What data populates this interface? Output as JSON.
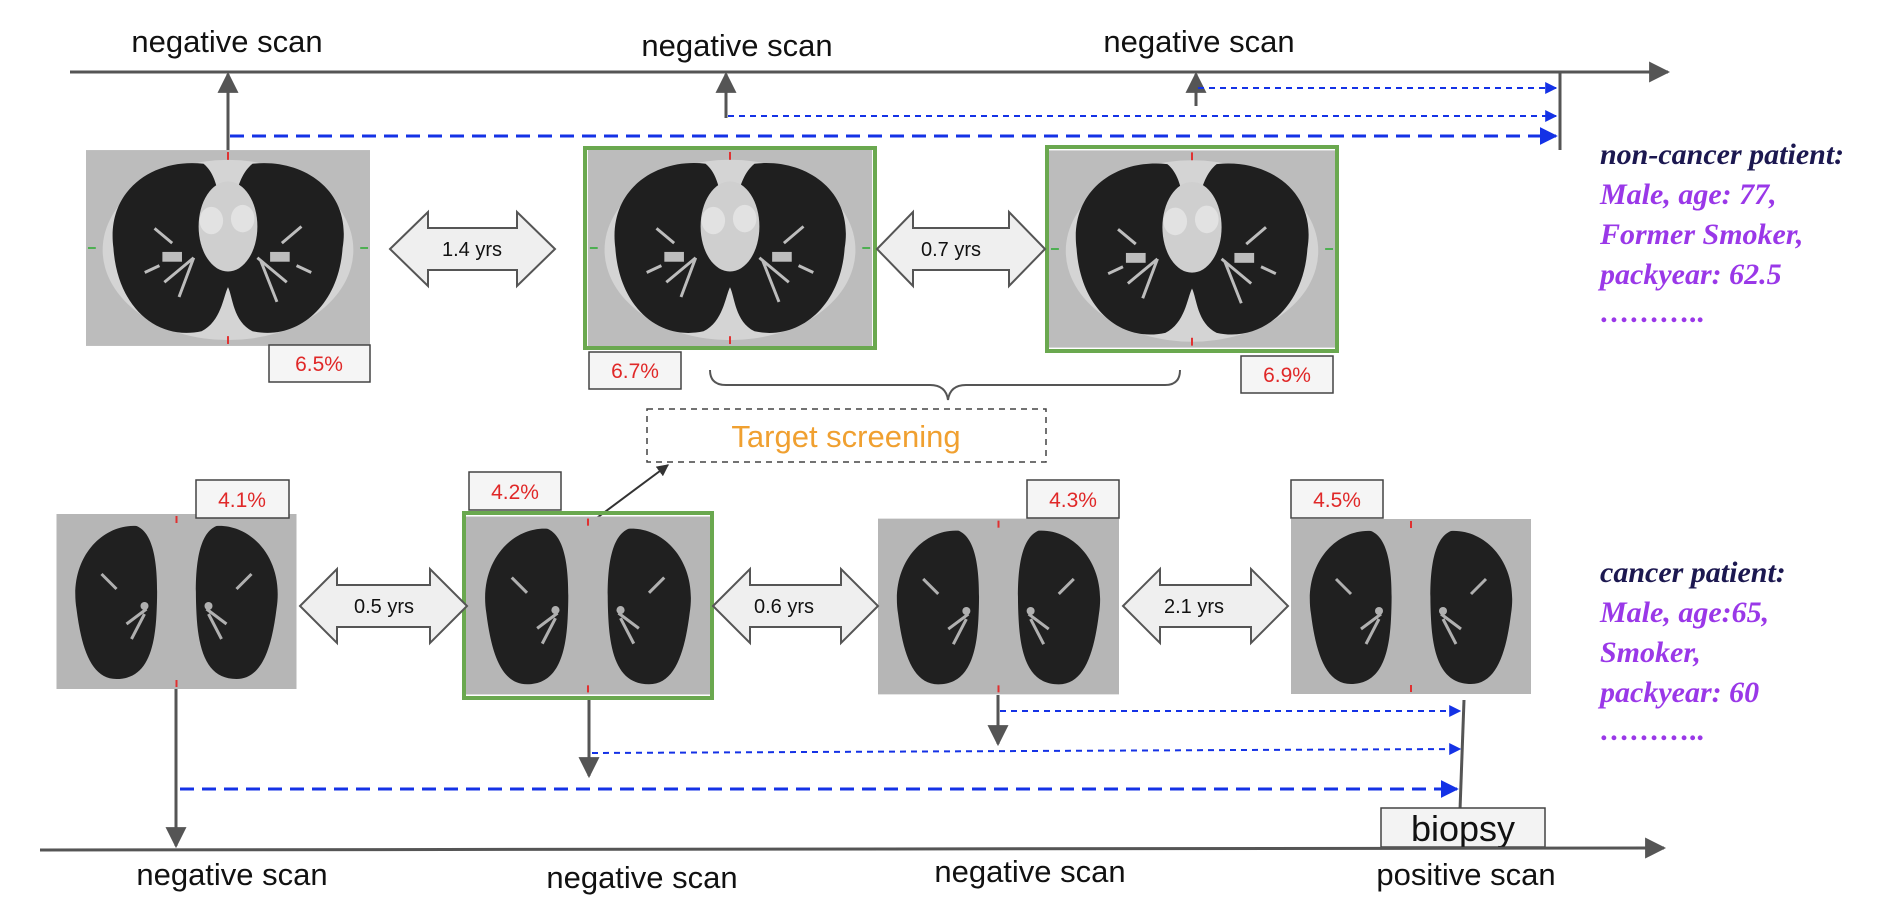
{
  "colors": {
    "axis": "#555555",
    "dashed": "#1432e6",
    "frame_highlight": "#6aa84f",
    "percent_text": "#e02828",
    "target_text": "#f0a030",
    "patient_heading": "#1c1850",
    "patient_details": "#9a38e8"
  },
  "top_timeline": {
    "scan_labels": [
      "negative scan",
      "negative scan",
      "negative scan"
    ],
    "percentages": [
      "6.5%",
      "6.7%",
      "6.9%"
    ],
    "intervals": [
      "1.4 yrs",
      "0.7 yrs"
    ],
    "highlighted_scans": [
      false,
      true,
      true
    ]
  },
  "bottom_timeline": {
    "scan_labels": [
      "negative scan",
      "negative scan",
      "negative scan",
      "positive scan"
    ],
    "percentages": [
      "4.1%",
      "4.2%",
      "4.3%",
      "4.5%"
    ],
    "intervals": [
      "0.5 yrs",
      "0.6 yrs",
      "2.1 yrs"
    ],
    "highlighted_scans": [
      false,
      true,
      false,
      false
    ]
  },
  "target_screening": "Target screening",
  "biopsy": "biopsy",
  "non_cancer_patient": {
    "heading": "non-cancer patient:",
    "lines": [
      "Male, age: 77,",
      "Former Smoker,",
      "packyear: 62.5",
      "……….."
    ]
  },
  "cancer_patient": {
    "heading": "cancer patient:",
    "lines": [
      "Male, age:65,",
      "Smoker,",
      "packyear: 60",
      "……….."
    ]
  }
}
